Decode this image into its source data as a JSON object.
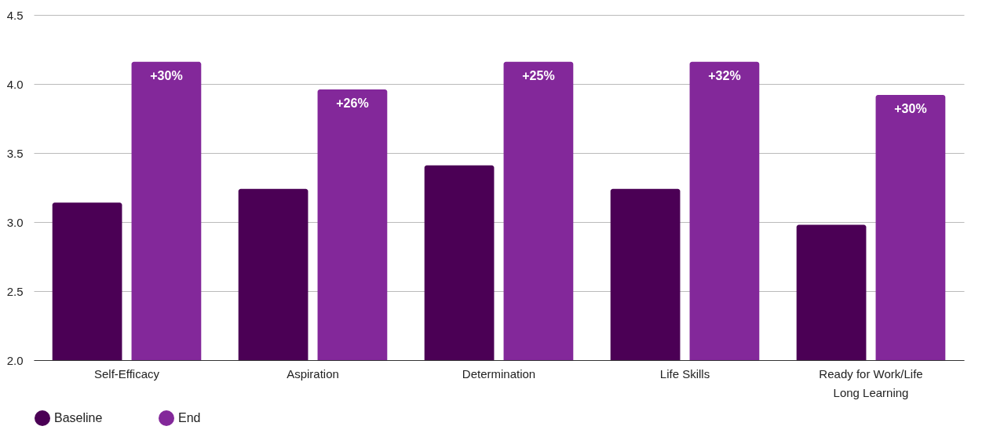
{
  "chart_data": {
    "type": "bar",
    "categories": [
      "Self-Efficacy",
      "Aspiration",
      "Determination",
      "Life Skills",
      "Ready for Work/Life Long Learning"
    ],
    "series": [
      {
        "name": "Baseline",
        "color": "#4b0055",
        "values": [
          3.14,
          3.24,
          3.41,
          3.24,
          2.98
        ]
      },
      {
        "name": "End",
        "color": "#83289a",
        "values": [
          4.16,
          3.96,
          4.16,
          4.16,
          3.92
        ]
      }
    ],
    "annotations": [
      "+30%",
      "+26%",
      "+25%",
      "+32%",
      "+30%"
    ],
    "ylim": [
      2,
      4.5
    ],
    "yticks": [
      {
        "value": 2,
        "label": "2.0"
      },
      {
        "value": 2.5,
        "label": "2.5"
      },
      {
        "value": 3,
        "label": "3.0"
      },
      {
        "value": 3.5,
        "label": "3.5"
      },
      {
        "value": 4,
        "label": "4.0"
      },
      {
        "value": 4.5,
        "label": "4.5"
      }
    ],
    "grid": "y",
    "legend": "bottom"
  }
}
